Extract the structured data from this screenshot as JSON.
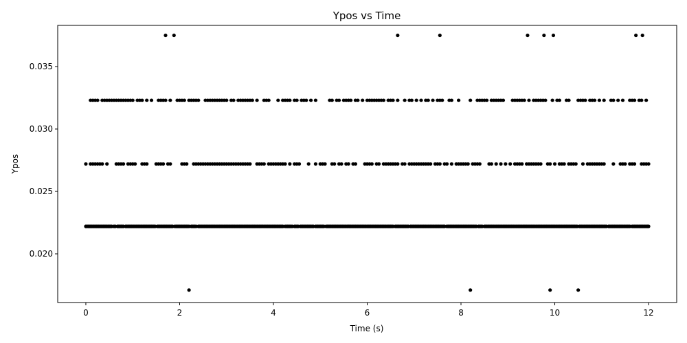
{
  "chart_data": {
    "type": "scatter",
    "title": "Ypos vs Time",
    "xlabel": "Time (s)",
    "ylabel": "Ypos",
    "xlim": [
      -0.6,
      12.6
    ],
    "ylim": [
      0.0161,
      0.0383
    ],
    "xticks": [
      0,
      2,
      4,
      6,
      8,
      10,
      12
    ],
    "xtick_labels": [
      "0",
      "2",
      "4",
      "6",
      "8",
      "10",
      "12"
    ],
    "yticks": [
      0.02,
      0.025,
      0.03,
      0.035
    ],
    "ytick_labels": [
      "0.020",
      "0.025",
      "0.030",
      "0.035"
    ],
    "grid": false,
    "marker_color": "#000000",
    "levels": [
      0.0171,
      0.0222,
      0.0272,
      0.0323,
      0.0375
    ],
    "series": [
      {
        "points": {
          "y_0.0222": {
            "x_range": [
              0.0,
              12.0
            ],
            "x_step": 0.025
          },
          "y_0.0272": {
            "x_range": [
              0.0,
              12.0
            ],
            "x_step": 0.05
          },
          "y_0.0323": {
            "x_range": [
              0.1,
              11.95
            ],
            "x_step": 0.05
          },
          "y_0.0375": {
            "x": [
              1.7,
              1.88,
              6.65,
              7.55,
              9.42,
              9.77,
              9.97,
              11.73,
              11.87
            ]
          },
          "y_0.0171": {
            "x": [
              2.2,
              8.2,
              9.9,
              10.5
            ]
          }
        }
      }
    ]
  }
}
